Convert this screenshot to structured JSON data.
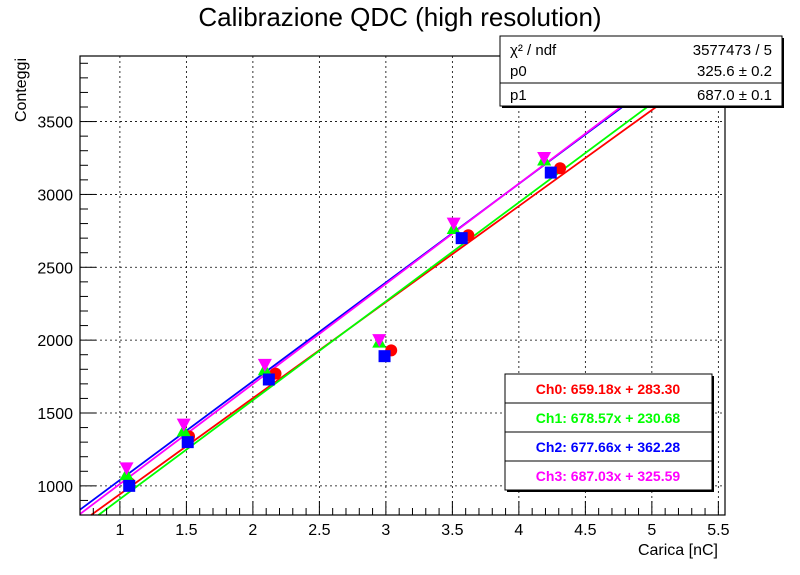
{
  "chart_data": {
    "type": "scatter",
    "title": "Calibrazione QDC (high resolution)",
    "xlabel": "Carica [nC]",
    "ylabel": "Conteggi",
    "xlim": [
      0.7,
      5.55
    ],
    "ylim": [
      800,
      3950
    ],
    "grid": true,
    "x_ticks": [
      1,
      1.5,
      2,
      2.5,
      3,
      3.5,
      4,
      4.5,
      5,
      5.5
    ],
    "x_tick_labels": [
      "1",
      "1.5",
      "2",
      "2.5",
      "3",
      "3.5",
      "4",
      "4.5",
      "5",
      "5.5"
    ],
    "y_ticks": [
      1000,
      1500,
      2000,
      2500,
      3000,
      3500
    ],
    "y_tick_labels": [
      "1000",
      "1500",
      "2000",
      "2500",
      "3000",
      "3500"
    ],
    "stats_box": {
      "rows": [
        {
          "label": "χ² / ndf",
          "value": "3577473 / 5"
        },
        {
          "label": "p0",
          "value": "325.6 ± 0.2"
        },
        {
          "label": "p1",
          "value": "687.0 ± 0.1"
        }
      ]
    },
    "legend_position": "bottom-right",
    "series": [
      {
        "name": "Ch0: 659.18x + 283.30",
        "color": "#ff0000",
        "marker": "circle",
        "slope": 659.18,
        "intercept": 283.3,
        "points": [
          [
            1.07,
            1020
          ],
          [
            1.52,
            1340
          ],
          [
            2.17,
            1770
          ],
          [
            3.04,
            1930
          ],
          [
            3.62,
            2720
          ],
          [
            4.31,
            3180
          ]
        ]
      },
      {
        "name": "Ch1: 678.57x + 230.68",
        "color": "#00ff00",
        "marker": "triangle-up",
        "slope": 678.57,
        "intercept": 230.68,
        "points": [
          [
            1.05,
            1080
          ],
          [
            1.48,
            1380
          ],
          [
            2.09,
            1800
          ],
          [
            2.95,
            1990
          ],
          [
            3.51,
            2770
          ],
          [
            4.19,
            3240
          ]
        ]
      },
      {
        "name": "Ch2: 677.66x + 362.28",
        "color": "#0000ff",
        "marker": "square",
        "slope": 677.66,
        "intercept": 362.28,
        "points": [
          [
            1.07,
            1000
          ],
          [
            1.51,
            1300
          ],
          [
            2.12,
            1730
          ],
          [
            2.99,
            1890
          ],
          [
            3.57,
            2700
          ],
          [
            4.24,
            3150
          ]
        ]
      },
      {
        "name": "Ch3: 687.03x + 325.59",
        "color": "#ff00ff",
        "marker": "triangle-down",
        "slope": 687.03,
        "intercept": 325.59,
        "points": [
          [
            1.05,
            1120
          ],
          [
            1.48,
            1420
          ],
          [
            2.09,
            1830
          ],
          [
            2.95,
            2000
          ],
          [
            3.51,
            2800
          ],
          [
            4.19,
            3250
          ]
        ]
      }
    ]
  }
}
